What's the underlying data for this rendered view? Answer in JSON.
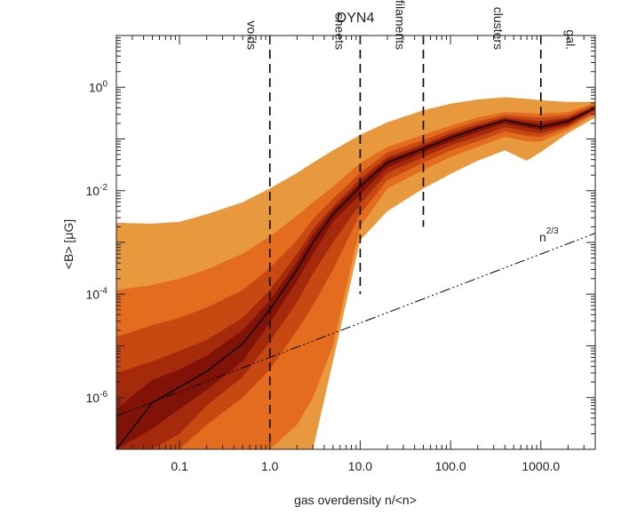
{
  "chart_data": {
    "type": "area",
    "title": "DYN4",
    "xlabel": "gas overdensity n/<n>",
    "ylabel": "<B> [μG]",
    "xscale": "log",
    "yscale": "log",
    "xlim": [
      0.02,
      4000
    ],
    "ylim": [
      1e-07,
      10
    ],
    "x_ticks": [
      {
        "value": 0.1,
        "label": "0.1"
      },
      {
        "value": 1,
        "label": "1.0"
      },
      {
        "value": 10,
        "label": "10.0"
      },
      {
        "value": 100,
        "label": "100.0"
      },
      {
        "value": 1000,
        "label": "1000.0"
      }
    ],
    "y_ticks": [
      {
        "value": 1e-06,
        "base": "10",
        "exp": "-6"
      },
      {
        "value": 0.0001,
        "base": "10",
        "exp": "-4"
      },
      {
        "value": 0.01,
        "base": "10",
        "exp": "-2"
      },
      {
        "value": 1,
        "base": "10",
        "exp": "0"
      }
    ],
    "x": [
      0.02,
      0.05,
      0.1,
      0.2,
      0.5,
      1,
      2,
      3,
      5,
      10,
      20,
      50,
      100,
      200,
      400,
      700,
      1000,
      2000,
      4000
    ],
    "median": [
      1e-07,
      8e-07,
      1.6e-06,
      3.2e-06,
      1.1e-05,
      5e-05,
      0.0003,
      0.001,
      0.0035,
      0.012,
      0.035,
      0.065,
      0.105,
      0.16,
      0.23,
      0.19,
      0.17,
      0.22,
      0.4
    ],
    "bands": [
      {
        "name": "outer",
        "color": "#E8993E",
        "upper": [
          0.0024,
          0.0023,
          0.0025,
          0.0035,
          0.006,
          0.011,
          0.022,
          0.035,
          0.06,
          0.12,
          0.21,
          0.36,
          0.48,
          0.58,
          0.64,
          0.6,
          0.56,
          0.52,
          0.52
        ],
        "lower": [
          1e-07,
          1e-07,
          1e-07,
          1e-07,
          1e-07,
          1e-07,
          1e-07,
          1e-07,
          5e-06,
          0.0011,
          0.004,
          0.011,
          0.021,
          0.038,
          0.06,
          0.038,
          0.056,
          0.13,
          0.26
        ]
      },
      {
        "name": "band-2",
        "color": "#E46C1E",
        "upper": [
          0.00012,
          0.00015,
          0.0002,
          0.0003,
          0.0006,
          0.0013,
          0.0033,
          0.006,
          0.012,
          0.034,
          0.07,
          0.12,
          0.18,
          0.26,
          0.33,
          0.32,
          0.31,
          0.33,
          0.5
        ],
        "lower": [
          1e-07,
          1e-07,
          1e-07,
          1e-07,
          1e-07,
          1e-07,
          3e-07,
          1e-06,
          1e-05,
          0.002,
          0.011,
          0.025,
          0.045,
          0.07,
          0.11,
          0.09,
          0.09,
          0.15,
          0.31
        ]
      },
      {
        "name": "band-3",
        "color": "#C84812",
        "upper": [
          1.5e-05,
          2.5e-05,
          3.5e-05,
          5.5e-05,
          0.00012,
          0.00032,
          0.0011,
          0.0028,
          0.007,
          0.022,
          0.055,
          0.095,
          0.15,
          0.22,
          0.29,
          0.27,
          0.26,
          0.29,
          0.46
        ],
        "lower": [
          1e-07,
          1e-07,
          1e-07,
          3e-07,
          1e-06,
          3.5e-06,
          2e-05,
          6e-05,
          0.0003,
          0.0035,
          0.016,
          0.035,
          0.06,
          0.09,
          0.14,
          0.115,
          0.11,
          0.17,
          0.33
        ]
      },
      {
        "name": "band-4",
        "color": "#A52A0C",
        "upper": [
          3e-06,
          5e-06,
          8e-06,
          1.3e-05,
          3.5e-05,
          0.00012,
          0.0006,
          0.0018,
          0.005,
          0.017,
          0.045,
          0.08,
          0.13,
          0.19,
          0.26,
          0.235,
          0.22,
          0.26,
          0.43
        ],
        "lower": [
          1e-07,
          1e-07,
          2e-07,
          7e-07,
          2.5e-06,
          1.2e-05,
          7e-05,
          0.00025,
          0.001,
          0.0055,
          0.022,
          0.045,
          0.075,
          0.11,
          0.17,
          0.14,
          0.13,
          0.18,
          0.36
        ]
      },
      {
        "name": "band-5",
        "color": "#801208",
        "upper": [
          6e-07,
          2.2e-06,
          3.5e-06,
          6.5e-06,
          2e-05,
          7.5e-05,
          0.00042,
          0.0014,
          0.0043,
          0.0145,
          0.04,
          0.072,
          0.118,
          0.175,
          0.245,
          0.21,
          0.195,
          0.245,
          0.42
        ],
        "lower": [
          1e-07,
          2.5e-07,
          6e-07,
          1.4e-06,
          5e-06,
          2.8e-05,
          0.00018,
          0.0006,
          0.0025,
          0.0085,
          0.028,
          0.055,
          0.088,
          0.135,
          0.2,
          0.165,
          0.15,
          0.195,
          0.38
        ]
      }
    ],
    "reference_line": {
      "label_base": "n",
      "label_exp": "2/3",
      "x": [
        0.02,
        4000
      ],
      "y": [
        4.4e-07,
        0.0015
      ]
    },
    "thresholds": [
      {
        "x": 1,
        "label": "voids",
        "ymin": 1e-07,
        "ymax": 10
      },
      {
        "x": 10,
        "label": "sheets",
        "ymin": 0.0001,
        "ymax": 10
      },
      {
        "x": 50,
        "label": "filaments",
        "ymin": 0.002,
        "ymax": 10
      },
      {
        "x": 1000,
        "label": "clusters",
        "ymin": 0.15,
        "ymax": 10
      }
    ],
    "region_labels": [
      {
        "label": "voids",
        "x": 0.62
      },
      {
        "label": "sheets",
        "x": 5.8
      },
      {
        "label": "filaments",
        "x": 27
      },
      {
        "label": "clusters",
        "x": 330
      },
      {
        "label": "gal.",
        "x": 2100
      }
    ]
  }
}
